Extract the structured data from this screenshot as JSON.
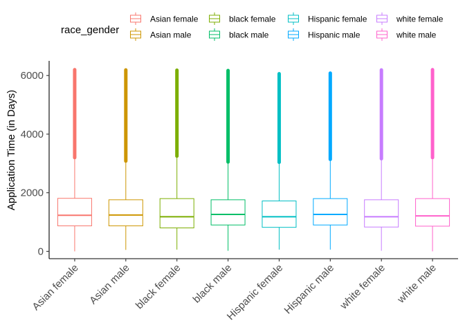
{
  "chart_data": {
    "type": "box",
    "title": "",
    "xlabel": "",
    "ylabel": "Application Time (in Days)",
    "ylim": [
      -250,
      6500
    ],
    "yticks": [
      0,
      2000,
      4000,
      6000
    ],
    "grid": false,
    "legend": {
      "title": "race_gender",
      "position": "top",
      "entries": [
        "Asian female",
        "Asian male",
        "black female",
        "black male",
        "Hispanic female",
        "Hispanic male",
        "white female",
        "white male"
      ]
    },
    "categories": [
      "Asian female",
      "Asian male",
      "black female",
      "black male",
      "Hispanic female",
      "Hispanic male",
      "white female",
      "white male"
    ],
    "colors": [
      "#F8766D",
      "#CD9600",
      "#7CAE00",
      "#00BE67",
      "#00BFC4",
      "#00A9FF",
      "#C77CFF",
      "#FF61CC"
    ],
    "boxes": [
      {
        "min": 0,
        "q1": 870,
        "median": 1230,
        "q3": 1810,
        "upper_whisker": 3200,
        "outlier_max": 6200
      },
      {
        "min": 50,
        "q1": 870,
        "median": 1240,
        "q3": 1760,
        "upper_whisker": 3080,
        "outlier_max": 6190
      },
      {
        "min": 60,
        "q1": 800,
        "median": 1180,
        "q3": 1800,
        "upper_whisker": 3250,
        "outlier_max": 6180
      },
      {
        "min": 20,
        "q1": 900,
        "median": 1260,
        "q3": 1760,
        "upper_whisker": 3050,
        "outlier_max": 6170
      },
      {
        "min": 60,
        "q1": 820,
        "median": 1180,
        "q3": 1720,
        "upper_whisker": 3040,
        "outlier_max": 6060
      },
      {
        "min": 60,
        "q1": 900,
        "median": 1260,
        "q3": 1800,
        "upper_whisker": 3140,
        "outlier_max": 6080
      },
      {
        "min": 20,
        "q1": 830,
        "median": 1180,
        "q3": 1760,
        "upper_whisker": 3160,
        "outlier_max": 6190
      },
      {
        "min": 0,
        "q1": 860,
        "median": 1210,
        "q3": 1800,
        "upper_whisker": 3200,
        "outlier_max": 6200
      }
    ]
  }
}
